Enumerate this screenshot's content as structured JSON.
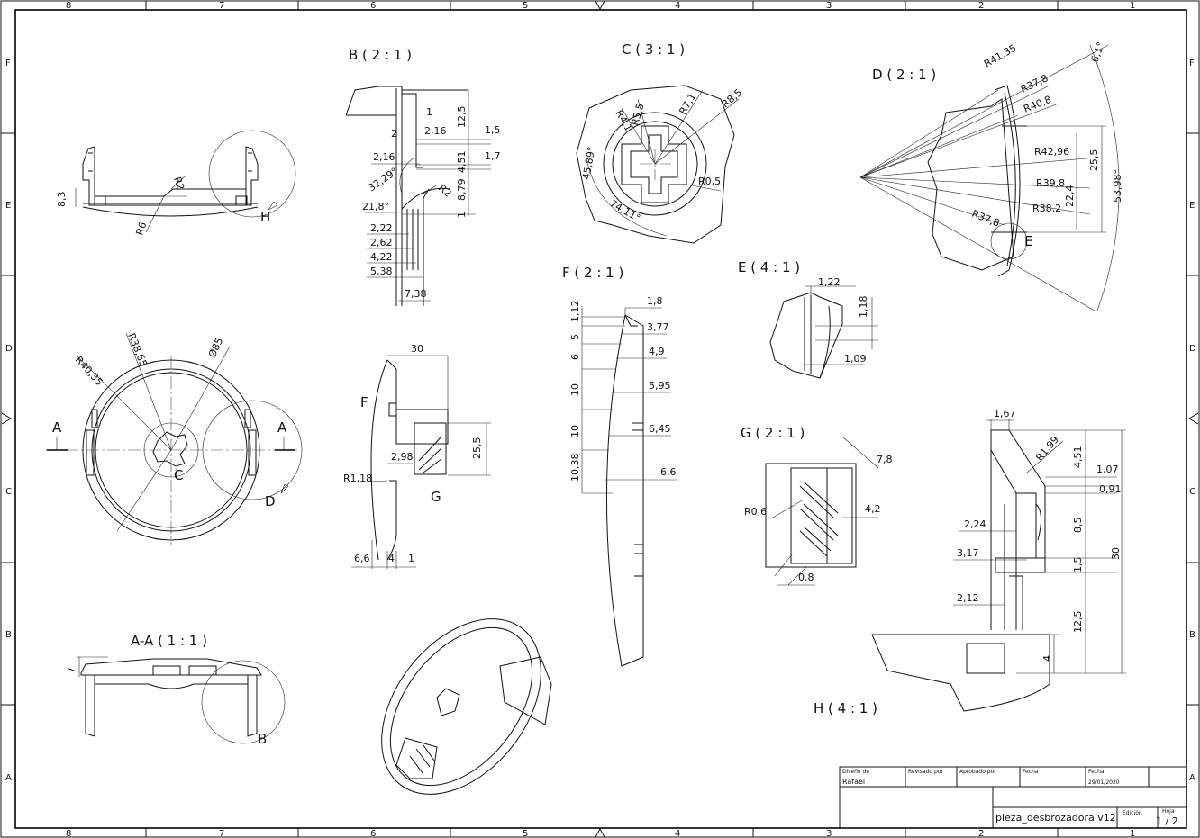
{
  "sheet": {
    "zones_cols": [
      "8",
      "7",
      "6",
      "5",
      "4",
      "3",
      "2",
      "1"
    ],
    "zones_rows": [
      "F",
      "E",
      "D",
      "C",
      "B",
      "A"
    ]
  },
  "views": {
    "b": "B ( 2 : 1 )",
    "c": "C ( 3 : 1 )",
    "d": "D ( 2 : 1 )",
    "f": "F ( 2 : 1 )",
    "e": "E ( 4 : 1 )",
    "g": "G ( 2 : 1 )",
    "h": "H ( 4 : 1 )",
    "aa": "A-A ( 1 : 1 )"
  },
  "callouts": {
    "h": "H",
    "a_left": "A",
    "a_right": "A",
    "c": "C",
    "d": "D",
    "f": "F",
    "g": "G",
    "e": "E",
    "b": "B"
  },
  "dims": {
    "v1_83": "8,3",
    "v1_r2": "R2",
    "v1_r6": "R6",
    "b_1": "1",
    "b_2": "2",
    "b_216a": "2,16",
    "b_216b": "2,16",
    "b_125": "12,5",
    "b_15": "1,5",
    "b_17": "1,7",
    "b_451": "4,51",
    "b_879": "8,79",
    "b_1r": "1",
    "b_3229": "32,29°",
    "b_218": "21,8°",
    "b_r2": "R2",
    "b_222": "2,22",
    "b_262": "2,62",
    "b_422": "4,22",
    "b_538": "5,38",
    "b_738": "7,38",
    "c_r41": "R4,1",
    "c_r55": "R5,5",
    "c_r71": "R7,1",
    "c_r85": "R8,5",
    "c_4589": "45,89°",
    "c_r05": "R0,5",
    "c_7411": "74,11°",
    "d_r4135": "R41,35",
    "d_61": "6,1°",
    "d_r378a": "R37,8",
    "d_r408": "R40,8",
    "d_r4296": "R42,96",
    "d_255": "25,5",
    "d_r398": "R39,8",
    "d_224": "22,4",
    "d_r382": "R38,2",
    "d_5398": "53,98°",
    "d_r378b": "R37,8",
    "m_r4035": "R40,35",
    "m_r3865": "R38,65",
    "m_d85": "Ø85",
    "s_30": "30",
    "s_255": "25,5",
    "s_298": "2,98",
    "s_r118": "R1,18",
    "s_66": "6,6",
    "s_4": "4",
    "s_1": "1",
    "f_112": "1,12",
    "f_18": "1,8",
    "f_377": "3,77",
    "f_5": "5",
    "f_6": "6",
    "f_49": "4,9",
    "f_10a": "10",
    "f_595": "5,95",
    "f_10b": "10",
    "f_645": "6,45",
    "f_1038": "10,38",
    "f_66": "6,6",
    "e_122": "1,22",
    "e_118": "1,18",
    "e_109": "1,09",
    "g_78": "7,8",
    "g_r06": "R0,6",
    "g_42": "4,2",
    "g_08": "0,8",
    "h_167": "1,67",
    "h_r199": "R1,99",
    "h_451": "4,51",
    "h_107": "1,07",
    "h_091": "0,91",
    "h_224": "2,24",
    "h_85": "8,5",
    "h_317": "3,17",
    "h_15": "1,5",
    "h_30": "30",
    "h_212": "2,12",
    "h_125": "12,5",
    "h_4": "4",
    "aa_7": "7"
  },
  "title_block": {
    "design_label": "Diseño de",
    "design_value": "Rafael",
    "reviewed_label": "Revisado por",
    "approved_label": "Aprobado por",
    "date_label1": "Fecha",
    "date_label2": "Fecha",
    "date_value": "29/01/2020",
    "part_name": "pieza_desbrozadora v12",
    "edition_label": "Edición",
    "sheet_label": "Hoja",
    "sheet_value": "1 / 2"
  }
}
